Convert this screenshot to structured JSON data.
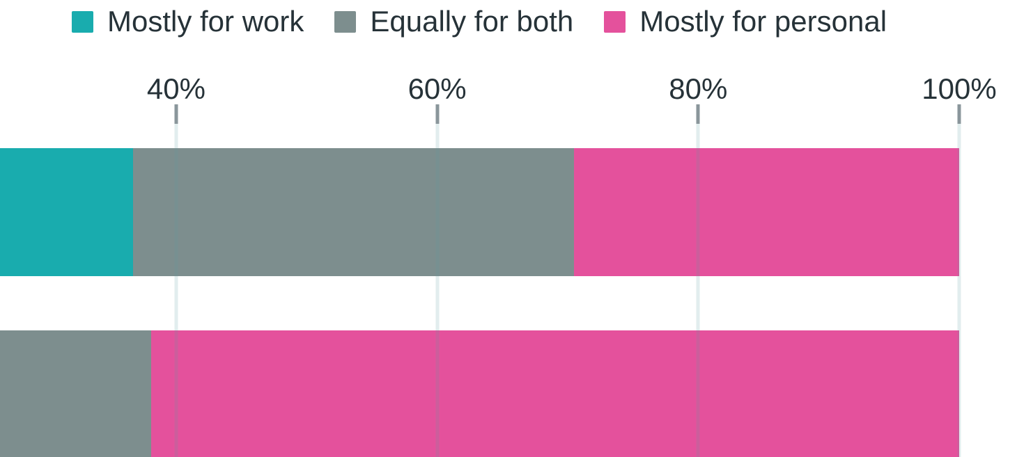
{
  "chart_data": {
    "type": "bar",
    "orientation": "horizontal",
    "stacked": true,
    "title": "",
    "legend": {
      "position": "top",
      "items": [
        {
          "label": "Mostly for work",
          "color": "#19acae"
        },
        {
          "label": "Equally for both",
          "color": "#7d8e8e"
        },
        {
          "label": "Mostly for personal",
          "color": "#e4519c"
        }
      ]
    },
    "x_axis": {
      "unit": "%",
      "ticks": [
        {
          "value": 40,
          "label": "40%"
        },
        {
          "value": 60,
          "label": "60%"
        },
        {
          "value": 80,
          "label": "80%"
        },
        {
          "value": 100,
          "label": "100%"
        }
      ],
      "visible_range_pct": [
        26.5,
        100
      ],
      "grid": true
    },
    "rows": [
      {
        "segments": [
          {
            "series": "Mostly for work",
            "from_pct": 26.5,
            "to_pct": 36.7,
            "cropped_left": true
          },
          {
            "series": "Equally for both",
            "from_pct": 36.7,
            "to_pct": 70.5
          },
          {
            "series": "Mostly for personal",
            "from_pct": 70.5,
            "to_pct": 100
          }
        ]
      },
      {
        "segments": [
          {
            "series": "Equally for both",
            "from_pct": 26.5,
            "to_pct": 38.1,
            "cropped_left": true
          },
          {
            "series": "Mostly for personal",
            "from_pct": 38.1,
            "to_pct": 100
          }
        ]
      }
    ]
  },
  "colors": {
    "background": "#ffffff",
    "text": "#263238",
    "tick_mark": "#8a969b",
    "gridline": "rgba(96,154,163,0.18)"
  }
}
